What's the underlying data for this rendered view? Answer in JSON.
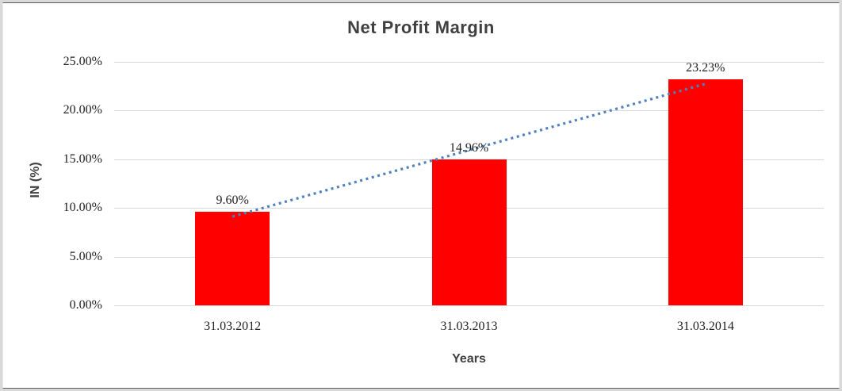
{
  "chart_data": {
    "type": "bar",
    "title": "Net Profit Margin",
    "xlabel": "Years",
    "ylabel": "IN (%)",
    "categories": [
      "31.03.2012",
      "31.03.2013",
      "31.03.2014"
    ],
    "values": [
      9.6,
      14.96,
      23.23
    ],
    "data_labels": [
      "9.60%",
      "14.96%",
      "23.23%"
    ],
    "ytick_labels": [
      "0.00%",
      "5.00%",
      "10.00%",
      "15.00%",
      "20.00%",
      "25.00%"
    ],
    "ytick_values": [
      0,
      5,
      10,
      15,
      20,
      25
    ],
    "ylim": [
      0,
      25
    ],
    "grid": true,
    "legend_position": "none",
    "bar_color": "#ff0000",
    "gridline_color": "#d9d9d9",
    "trendline": {
      "type": "linear",
      "style": "dotted",
      "color": "#4f81bd"
    }
  }
}
